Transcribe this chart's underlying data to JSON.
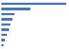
{
  "values": [
    100,
    45,
    20,
    17,
    14,
    12,
    8,
    5,
    3
  ],
  "bar_color": "#4472c4",
  "background_color": "#ffffff",
  "grid_color": "#d9d9d9",
  "bar_height": 0.5
}
